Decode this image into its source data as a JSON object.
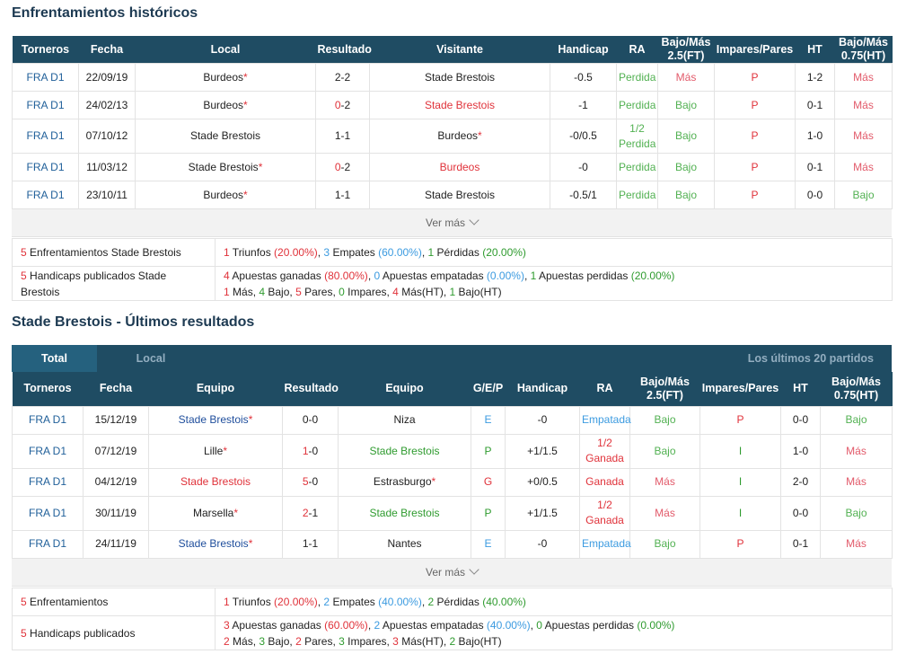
{
  "h2h": {
    "title": "Enfrentamientos históricos",
    "headers": [
      "Torneros",
      "Fecha",
      "Local",
      "Resultado",
      "Visitante",
      "Handicap",
      "RA",
      "Bajo/Más 2.5(FT)",
      "Impares/Pares",
      "HT",
      "Bajo/Más 0.75(HT)"
    ],
    "more": "Ver más",
    "summary1_label": "Enfrentamientos Stade Brestois",
    "summary2_label": "Handicaps publicados Stade Brestois"
  },
  "recent": {
    "title": "Stade Brestois - Últimos resultados",
    "tab_total": "Total",
    "tab_local": "Local",
    "tab_last": "Los últimos 20 partidos",
    "headers": [
      "Torneros",
      "Fecha",
      "Equipo",
      "Resultado",
      "Equipo",
      "G/E/P",
      "Handicap",
      "RA",
      "Bajo/Más 2.5(FT)",
      "Impares/Pares",
      "HT",
      "Bajo/Más 0.75(HT)"
    ],
    "more": "Ver más",
    "summary1_label": "Enfrentamientos",
    "summary2_label": "Handicaps publicados"
  },
  "h2h_rows": [
    {
      "league": "FRA D1",
      "date": "22/09/19",
      "home": "Burdeos",
      "home_star": true,
      "home_color": "#222222",
      "score_a": "2",
      "score_b": "2",
      "score_color": "#222222",
      "away": "Stade Brestois",
      "away_star": false,
      "away_color": "#222222",
      "hcp": "-0.5",
      "ra": "Perdida",
      "ra2": "",
      "bm": "Más",
      "bm_color": "#e25a6a",
      "ip": "P",
      "ht": "1-2",
      "bm2": "Más",
      "bm2_color": "#e25a6a"
    },
    {
      "league": "FRA D1",
      "date": "24/02/13",
      "home": "Burdeos",
      "home_star": true,
      "home_color": "#222222",
      "score_a": "0",
      "score_b": "2",
      "score_color": "#e0323a",
      "away": "Stade Brestois",
      "away_star": false,
      "away_color": "#e0323a",
      "hcp": "-1",
      "ra": "Perdida",
      "ra2": "",
      "bm": "Bajo",
      "bm_color": "#52b152",
      "ip": "P",
      "ht": "0-1",
      "bm2": "Más",
      "bm2_color": "#e25a6a"
    },
    {
      "league": "FRA D1",
      "date": "07/10/12",
      "home": "Stade Brestois",
      "home_star": false,
      "home_color": "#222222",
      "score_a": "1",
      "score_b": "1",
      "score_color": "#222222",
      "away": "Burdeos",
      "away_star": true,
      "away_color": "#222222",
      "hcp": "-0/0.5",
      "ra": "1/2",
      "ra2": "Perdida",
      "bm": "Bajo",
      "bm_color": "#52b152",
      "ip": "P",
      "ht": "1-0",
      "bm2": "Más",
      "bm2_color": "#e25a6a"
    },
    {
      "league": "FRA D1",
      "date": "11/03/12",
      "home": "Stade Brestois",
      "home_star": true,
      "home_color": "#222222",
      "score_a": "0",
      "score_b": "2",
      "score_color": "#e0323a",
      "away": "Burdeos",
      "away_star": false,
      "away_color": "#e0323a",
      "hcp": "-0",
      "ra": "Perdida",
      "ra2": "",
      "bm": "Bajo",
      "bm_color": "#52b152",
      "ip": "P",
      "ht": "0-1",
      "bm2": "Más",
      "bm2_color": "#e25a6a"
    },
    {
      "league": "FRA D1",
      "date": "23/10/11",
      "home": "Burdeos",
      "home_star": true,
      "home_color": "#222222",
      "score_a": "1",
      "score_b": "1",
      "score_color": "#222222",
      "away": "Stade Brestois",
      "away_star": false,
      "away_color": "#222222",
      "hcp": "-0.5/1",
      "ra": "Perdida",
      "ra2": "",
      "bm": "Bajo",
      "bm_color": "#52b152",
      "ip": "P",
      "ht": "0-0",
      "bm2": "Bajo",
      "bm2_color": "#52b152"
    }
  ],
  "h2h_summary": {
    "line1": [
      {
        "t": "1",
        "c": "#e0323a"
      },
      {
        "t": " Triunfos ",
        "c": "#222222"
      },
      {
        "t": "(20.00%)",
        "c": "#e0323a"
      },
      {
        "t": ", ",
        "c": "#222222"
      },
      {
        "t": "3",
        "c": "#3c9be0"
      },
      {
        "t": " Empates ",
        "c": "#222222"
      },
      {
        "t": "(60.00%)",
        "c": "#3c9be0"
      },
      {
        "t": ", ",
        "c": "#222222"
      },
      {
        "t": "1",
        "c": "#2f9b2f"
      },
      {
        "t": " Pérdidas ",
        "c": "#222222"
      },
      {
        "t": "(20.00%)",
        "c": "#2f9b2f"
      }
    ],
    "line2": [
      {
        "t": "4",
        "c": "#e0323a"
      },
      {
        "t": " Apuestas ganadas ",
        "c": "#222222"
      },
      {
        "t": "(80.00%)",
        "c": "#e0323a"
      },
      {
        "t": ", ",
        "c": "#222222"
      },
      {
        "t": "0",
        "c": "#3c9be0"
      },
      {
        "t": " Apuestas empatadas ",
        "c": "#222222"
      },
      {
        "t": "(0.00%)",
        "c": "#3c9be0"
      },
      {
        "t": ", ",
        "c": "#222222"
      },
      {
        "t": "1",
        "c": "#2f9b2f"
      },
      {
        "t": " Apuestas perdidas ",
        "c": "#222222"
      },
      {
        "t": "(20.00%)",
        "c": "#2f9b2f"
      }
    ],
    "line3": [
      {
        "t": "1",
        "c": "#e0323a"
      },
      {
        "t": " Más, ",
        "c": "#222222"
      },
      {
        "t": "4",
        "c": "#2f9b2f"
      },
      {
        "t": " Bajo, ",
        "c": "#222222"
      },
      {
        "t": "5",
        "c": "#e0323a"
      },
      {
        "t": " Pares, ",
        "c": "#222222"
      },
      {
        "t": "0",
        "c": "#2f9b2f"
      },
      {
        "t": " Impares, ",
        "c": "#222222"
      },
      {
        "t": "4",
        "c": "#e0323a"
      },
      {
        "t": " Más(HT), ",
        "c": "#222222"
      },
      {
        "t": "1",
        "c": "#2f9b2f"
      },
      {
        "t": " Bajo(HT)",
        "c": "#222222"
      }
    ],
    "count1": "5",
    "count2": "5"
  },
  "recent_rows": [
    {
      "league": "FRA D1",
      "date": "15/12/19",
      "home": "Stade Brestois",
      "home_star": true,
      "home_color": "#1f4e9c",
      "score_a": "0",
      "score_b": "0",
      "score_color": "#222222",
      "away": "Niza",
      "away_star": false,
      "away_color": "#222222",
      "gep": "E",
      "gep_color": "#3c9be0",
      "hcp": "-0",
      "ra": "Empatada",
      "ra2": "",
      "ra_color": "#3c9be0",
      "bm": "Bajo",
      "bm_color": "#52b152",
      "ip": "P",
      "ip_color": "#e0323a",
      "ht": "0-0",
      "bm2": "Bajo",
      "bm2_color": "#52b152"
    },
    {
      "league": "FRA D1",
      "date": "07/12/19",
      "home": "Lille",
      "home_star": true,
      "home_color": "#222222",
      "score_a": "1",
      "score_b": "0",
      "score_color": "#e0323a",
      "away": "Stade Brestois",
      "away_star": false,
      "away_color": "#2f9b2f",
      "gep": "P",
      "gep_color": "#2f9b2f",
      "hcp": "+1/1.5",
      "ra": "1/2",
      "ra2": "Ganada",
      "ra_color": "#e0323a",
      "bm": "Bajo",
      "bm_color": "#52b152",
      "ip": "I",
      "ip_color": "#2f9b2f",
      "ht": "1-0",
      "bm2": "Más",
      "bm2_color": "#e25a6a"
    },
    {
      "league": "FRA D1",
      "date": "04/12/19",
      "home": "Stade Brestois",
      "home_star": false,
      "home_color": "#e0323a",
      "score_a": "5",
      "score_b": "0",
      "score_color": "#e0323a",
      "away": "Estrasburgo",
      "away_star": true,
      "away_color": "#222222",
      "gep": "G",
      "gep_color": "#e0323a",
      "hcp": "+0/0.5",
      "ra": "Ganada",
      "ra2": "",
      "ra_color": "#e0323a",
      "bm": "Más",
      "bm_color": "#e25a6a",
      "ip": "I",
      "ip_color": "#2f9b2f",
      "ht": "2-0",
      "bm2": "Más",
      "bm2_color": "#e25a6a"
    },
    {
      "league": "FRA D1",
      "date": "30/11/19",
      "home": "Marsella",
      "home_star": true,
      "home_color": "#222222",
      "score_a": "2",
      "score_b": "1",
      "score_color": "#e0323a",
      "away": "Stade Brestois",
      "away_star": false,
      "away_color": "#2f9b2f",
      "gep": "P",
      "gep_color": "#2f9b2f",
      "hcp": "+1/1.5",
      "ra": "1/2",
      "ra2": "Ganada",
      "ra_color": "#e0323a",
      "bm": "Más",
      "bm_color": "#e25a6a",
      "ip": "I",
      "ip_color": "#2f9b2f",
      "ht": "0-0",
      "bm2": "Bajo",
      "bm2_color": "#52b152"
    },
    {
      "league": "FRA D1",
      "date": "24/11/19",
      "home": "Stade Brestois",
      "home_star": true,
      "home_color": "#1f4e9c",
      "score_a": "1",
      "score_b": "1",
      "score_color": "#222222",
      "away": "Nantes",
      "away_star": false,
      "away_color": "#222222",
      "gep": "E",
      "gep_color": "#3c9be0",
      "hcp": "-0",
      "ra": "Empatada",
      "ra2": "",
      "ra_color": "#3c9be0",
      "bm": "Bajo",
      "bm_color": "#52b152",
      "ip": "P",
      "ip_color": "#e0323a",
      "ht": "0-1",
      "bm2": "Más",
      "bm2_color": "#e25a6a"
    }
  ],
  "recent_summary": {
    "line1": [
      {
        "t": "1",
        "c": "#e0323a"
      },
      {
        "t": " Triunfos ",
        "c": "#222222"
      },
      {
        "t": "(20.00%)",
        "c": "#e0323a"
      },
      {
        "t": ", ",
        "c": "#222222"
      },
      {
        "t": "2",
        "c": "#3c9be0"
      },
      {
        "t": " Empates ",
        "c": "#222222"
      },
      {
        "t": "(40.00%)",
        "c": "#3c9be0"
      },
      {
        "t": ", ",
        "c": "#222222"
      },
      {
        "t": "2",
        "c": "#2f9b2f"
      },
      {
        "t": " Pérdidas ",
        "c": "#222222"
      },
      {
        "t": "(40.00%)",
        "c": "#2f9b2f"
      }
    ],
    "line2": [
      {
        "t": "3",
        "c": "#e0323a"
      },
      {
        "t": " Apuestas ganadas ",
        "c": "#222222"
      },
      {
        "t": "(60.00%)",
        "c": "#e0323a"
      },
      {
        "t": ", ",
        "c": "#222222"
      },
      {
        "t": "2",
        "c": "#3c9be0"
      },
      {
        "t": " Apuestas empatadas ",
        "c": "#222222"
      },
      {
        "t": "(40.00%)",
        "c": "#3c9be0"
      },
      {
        "t": ", ",
        "c": "#222222"
      },
      {
        "t": "0",
        "c": "#2f9b2f"
      },
      {
        "t": " Apuestas perdidas ",
        "c": "#222222"
      },
      {
        "t": "(0.00%)",
        "c": "#2f9b2f"
      }
    ],
    "line3": [
      {
        "t": "2",
        "c": "#e0323a"
      },
      {
        "t": " Más, ",
        "c": "#222222"
      },
      {
        "t": "3",
        "c": "#2f9b2f"
      },
      {
        "t": " Bajo, ",
        "c": "#222222"
      },
      {
        "t": "2",
        "c": "#e0323a"
      },
      {
        "t": " Pares, ",
        "c": "#222222"
      },
      {
        "t": "3",
        "c": "#2f9b2f"
      },
      {
        "t": " Impares, ",
        "c": "#222222"
      },
      {
        "t": "3",
        "c": "#e0323a"
      },
      {
        "t": " Más(HT), ",
        "c": "#222222"
      },
      {
        "t": "2",
        "c": "#2f9b2f"
      },
      {
        "t": " Bajo(HT)",
        "c": "#222222"
      }
    ],
    "count1": "5",
    "count2": "5"
  }
}
